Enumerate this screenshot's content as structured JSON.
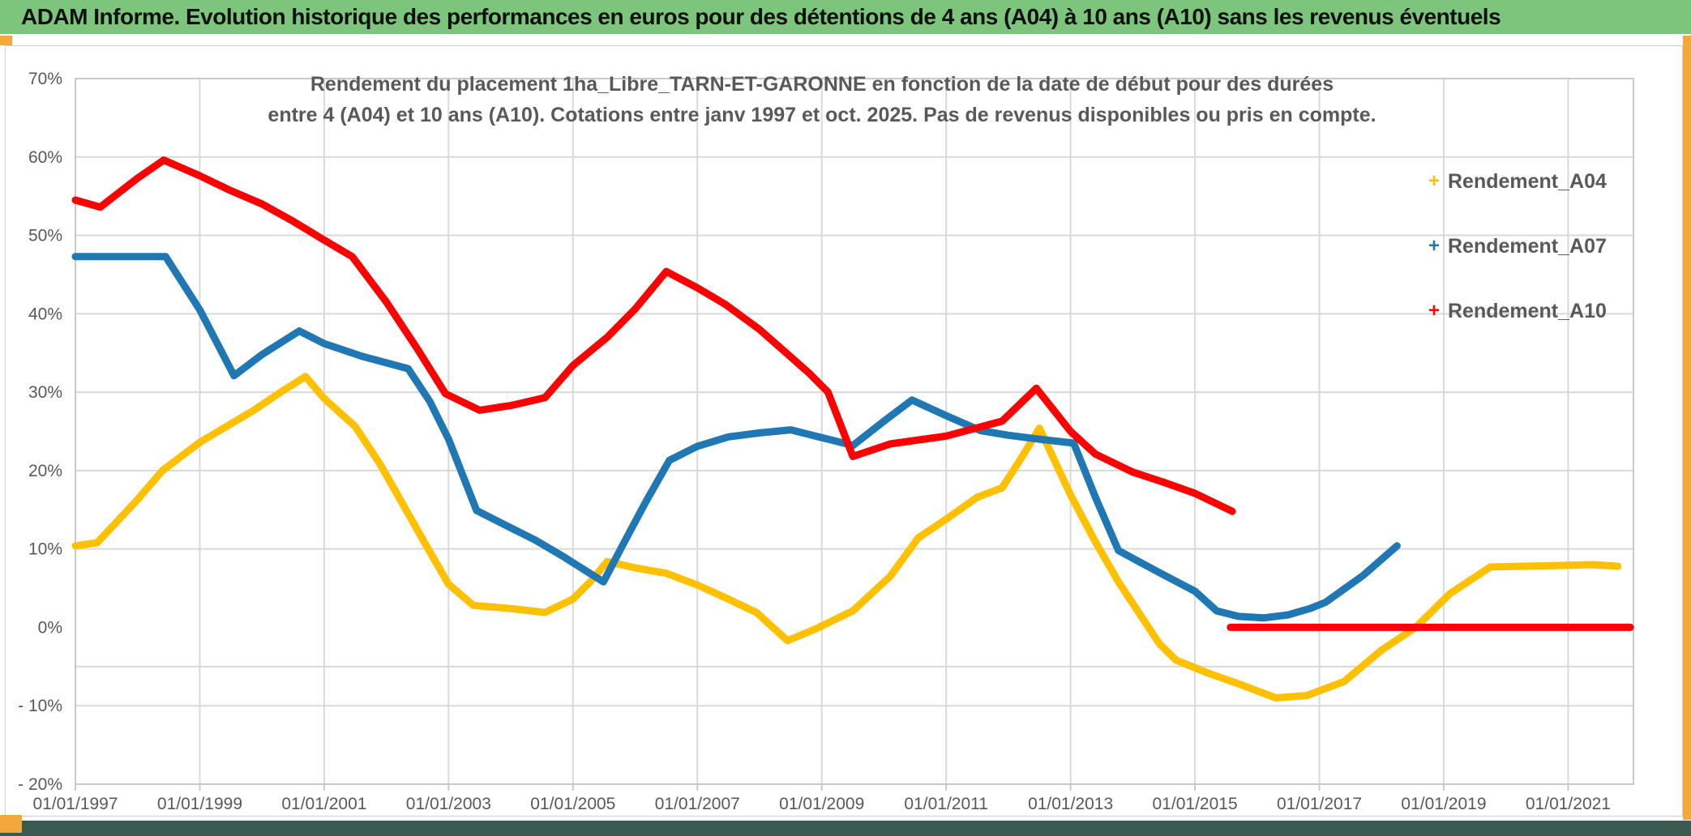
{
  "page": {
    "window_title": "ADAM Informe. Evolution historique des performances en euros pour des détentions de 4 ans (A04) à 10 ans (A10) sans les revenus éventuels",
    "colors": {
      "title_bar_green": "#7dc57d",
      "accent_orange": "#f2a93b",
      "bottom_bar_teal": "#3a5a52",
      "grid_gray": "#d9d9d9",
      "axis_text_gray": "#595959",
      "series_a04_gold": "#ffc000",
      "series_a07_blue": "#1f77b4",
      "series_a10_red": "#ff0000"
    }
  },
  "chart_data": {
    "type": "line",
    "title_line1": "Rendement du placement 1ha_Libre_TARN-ET-GARONNE en fonction de la date de début pour des durées",
    "title_line2": "entre 4 (A04) et 10 ans (A10). Cotations entre janv 1997 et oct. 2025. Pas de revenus disponibles ou pris en compte.",
    "legend_position": "right",
    "grid": "on",
    "x_axis": {
      "range_years": [
        1997.0,
        2022.05
      ],
      "tick_years": [
        1997,
        1999,
        2001,
        2003,
        2005,
        2007,
        2009,
        2011,
        2013,
        2015,
        2017,
        2019,
        2021
      ],
      "tick_labels": [
        "01/01/1997",
        "01/01/1999",
        "01/01/2001",
        "01/01/2003",
        "01/01/2005",
        "01/01/2007",
        "01/01/2009",
        "01/01/2011",
        "01/01/2013",
        "01/01/2015",
        "01/01/2017",
        "01/01/2019",
        "01/01/2021"
      ],
      "gridline_years": [
        1999,
        2001,
        2003,
        2005,
        2007,
        2009,
        2011,
        2013,
        2015,
        2017,
        2019,
        2021
      ]
    },
    "y_axis": {
      "range_percent": [
        -20,
        70
      ],
      "tick_values": [
        70,
        60,
        50,
        40,
        30,
        20,
        10,
        0,
        -10,
        -20
      ],
      "tick_labels": [
        "70%",
        "60%",
        "50%",
        "40%",
        "30%",
        "20%",
        "10%",
        "0%",
        "- 10%",
        "- 20%"
      ],
      "gridline_values": [
        60,
        50,
        40,
        30,
        20,
        10,
        -5,
        -10
      ]
    },
    "series": [
      {
        "name": "Rendement_A04",
        "color": "#ffc000",
        "marker": "+",
        "segments": [
          [
            [
              1997.0,
              10.4
            ],
            [
              1997.35,
              10.8
            ],
            [
              1998.0,
              16.3
            ],
            [
              1998.4,
              20.0
            ],
            [
              1999.0,
              23.6
            ],
            [
              1999.87,
              27.7
            ],
            [
              2000.3,
              30.0
            ],
            [
              2000.7,
              32.0
            ],
            [
              2001.0,
              29.2
            ],
            [
              2001.5,
              25.6
            ],
            [
              2001.9,
              20.8
            ],
            [
              2002.6,
              11.0
            ],
            [
              2003.0,
              5.5
            ],
            [
              2003.4,
              2.8
            ],
            [
              2004.0,
              2.4
            ],
            [
              2004.55,
              1.9
            ],
            [
              2005.0,
              3.6
            ],
            [
              2005.3,
              6.0
            ],
            [
              2005.55,
              8.4
            ],
            [
              2006.0,
              7.6
            ],
            [
              2006.5,
              6.9
            ],
            [
              2007.0,
              5.4
            ],
            [
              2007.5,
              3.6
            ],
            [
              2007.95,
              1.9
            ],
            [
              2008.45,
              -1.7
            ],
            [
              2008.9,
              -0.2
            ],
            [
              2009.5,
              2.1
            ],
            [
              2010.1,
              6.5
            ],
            [
              2010.55,
              11.4
            ],
            [
              2011.0,
              13.8
            ],
            [
              2011.5,
              16.6
            ],
            [
              2011.9,
              17.8
            ],
            [
              2012.2,
              21.5
            ],
            [
              2012.5,
              25.4
            ],
            [
              2013.0,
              16.9
            ],
            [
              2013.4,
              10.9
            ],
            [
              2013.77,
              5.8
            ],
            [
              2014.43,
              -2.1
            ],
            [
              2014.7,
              -4.2
            ],
            [
              2015.2,
              -5.8
            ],
            [
              2015.7,
              -7.2
            ],
            [
              2016.3,
              -9.0
            ],
            [
              2016.8,
              -8.7
            ],
            [
              2017.4,
              -6.9
            ],
            [
              2018.0,
              -2.9
            ],
            [
              2018.55,
              0.0
            ],
            [
              2019.1,
              4.3
            ],
            [
              2019.75,
              7.7
            ],
            [
              2020.3,
              7.8
            ],
            [
              2020.9,
              7.9
            ],
            [
              2021.4,
              8.0
            ],
            [
              2021.8,
              7.8
            ]
          ]
        ]
      },
      {
        "name": "Rendement_A07",
        "color": "#1f77b4",
        "marker": "+",
        "segments": [
          [
            [
              1997.0,
              47.3
            ],
            [
              1998.45,
              47.3
            ],
            [
              1999.0,
              40.5
            ],
            [
              1999.55,
              32.1
            ],
            [
              2000.0,
              34.8
            ],
            [
              2000.6,
              37.8
            ],
            [
              2001.0,
              36.2
            ],
            [
              2001.6,
              34.6
            ],
            [
              2002.35,
              33.0
            ],
            [
              2002.7,
              28.8
            ],
            [
              2003.0,
              24.0
            ],
            [
              2003.45,
              14.9
            ],
            [
              2003.95,
              12.9
            ],
            [
              2004.4,
              11.1
            ],
            [
              2004.85,
              9.0
            ],
            [
              2005.49,
              5.8
            ],
            [
              2005.8,
              10.5
            ],
            [
              2006.17,
              16.0
            ],
            [
              2006.55,
              21.3
            ],
            [
              2007.0,
              23.1
            ],
            [
              2007.5,
              24.3
            ],
            [
              2008.0,
              24.8
            ],
            [
              2008.5,
              25.2
            ],
            [
              2009.0,
              24.2
            ],
            [
              2009.5,
              23.2
            ],
            [
              2010.0,
              26.3
            ],
            [
              2010.45,
              29.0
            ],
            [
              2011.0,
              27.0
            ],
            [
              2011.55,
              25.1
            ],
            [
              2012.0,
              24.5
            ],
            [
              2012.5,
              24.0
            ],
            [
              2013.05,
              23.5
            ],
            [
              2013.4,
              16.6
            ],
            [
              2013.77,
              9.8
            ],
            [
              2014.4,
              7.1
            ],
            [
              2015.0,
              4.6
            ],
            [
              2015.35,
              2.1
            ],
            [
              2015.7,
              1.4
            ],
            [
              2016.1,
              1.2
            ],
            [
              2016.5,
              1.6
            ],
            [
              2016.85,
              2.4
            ],
            [
              2017.1,
              3.2
            ],
            [
              2017.7,
              6.6
            ],
            [
              2018.25,
              10.4
            ]
          ]
        ]
      },
      {
        "name": "Rendement_A10",
        "color": "#ff0000",
        "marker": "+",
        "segments": [
          [
            [
              1997.0,
              54.5
            ],
            [
              1997.4,
              53.6
            ],
            [
              1998.0,
              57.3
            ],
            [
              1998.42,
              59.6
            ],
            [
              1999.0,
              57.6
            ],
            [
              1999.5,
              55.7
            ],
            [
              2000.0,
              54.0
            ],
            [
              2000.5,
              51.8
            ],
            [
              2001.0,
              49.4
            ],
            [
              2001.45,
              47.3
            ],
            [
              2002.0,
              41.5
            ],
            [
              2002.5,
              35.5
            ],
            [
              2002.95,
              29.8
            ],
            [
              2003.5,
              27.7
            ],
            [
              2004.0,
              28.3
            ],
            [
              2004.55,
              29.3
            ],
            [
              2005.0,
              33.4
            ],
            [
              2005.55,
              37.0
            ],
            [
              2006.0,
              40.6
            ],
            [
              2006.5,
              45.4
            ],
            [
              2007.0,
              43.3
            ],
            [
              2007.45,
              41.2
            ],
            [
              2008.0,
              38.0
            ],
            [
              2008.4,
              35.2
            ],
            [
              2008.8,
              32.4
            ],
            [
              2009.1,
              30.0
            ],
            [
              2009.5,
              21.8
            ],
            [
              2010.1,
              23.4
            ],
            [
              2011.0,
              24.4
            ],
            [
              2011.9,
              26.3
            ],
            [
              2012.45,
              30.5
            ],
            [
              2013.0,
              25.0
            ],
            [
              2013.4,
              22.1
            ],
            [
              2014.0,
              19.8
            ],
            [
              2014.5,
              18.5
            ],
            [
              2015.0,
              17.1
            ],
            [
              2015.6,
              14.8
            ]
          ],
          [
            [
              2015.57,
              0.0
            ],
            [
              2022.0,
              0.0
            ]
          ]
        ]
      }
    ]
  }
}
